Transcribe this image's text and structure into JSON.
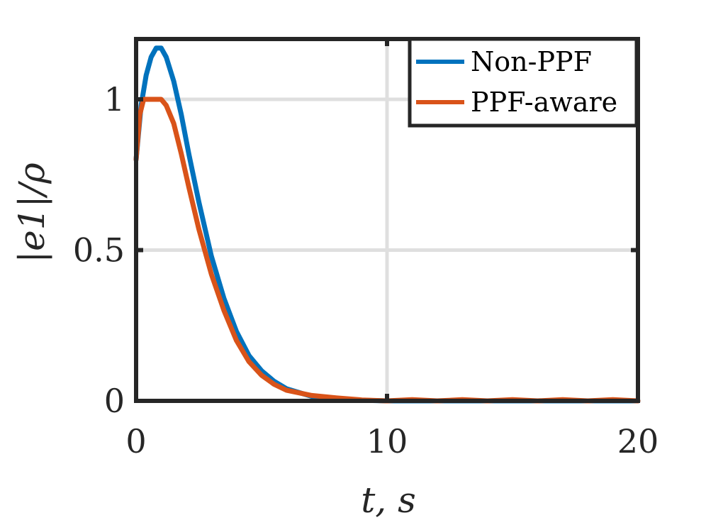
{
  "chart_data": {
    "type": "line",
    "title": "",
    "xlabel": "t, s",
    "ylabel": "|e1|/ρ",
    "xlim": [
      0,
      20
    ],
    "ylim": [
      0,
      1.2
    ],
    "x_ticks": [
      0,
      10,
      20
    ],
    "y_ticks": [
      0,
      0.5,
      1
    ],
    "x_tick_labels": [
      "0",
      "10",
      "20"
    ],
    "y_tick_labels": [
      "0",
      "0.5",
      "1"
    ],
    "grid": true,
    "legend_position": "top-right",
    "series": [
      {
        "name": "Non-PPF",
        "color": "#0072BD",
        "x": [
          0,
          0.2,
          0.4,
          0.6,
          0.8,
          1.0,
          1.2,
          1.5,
          1.8,
          2.1,
          2.5,
          3.0,
          3.5,
          4.0,
          4.5,
          5.0,
          5.5,
          6.0,
          7.0,
          8.0,
          9.0,
          10.0,
          12.0,
          14.0,
          16.0,
          18.0,
          20.0
        ],
        "y": [
          0.8,
          0.98,
          1.08,
          1.14,
          1.17,
          1.17,
          1.14,
          1.06,
          0.95,
          0.82,
          0.66,
          0.48,
          0.34,
          0.23,
          0.15,
          0.1,
          0.065,
          0.04,
          0.015,
          0.006,
          0.002,
          0.0,
          0.0,
          0.0,
          0.0,
          0.0,
          0.0
        ]
      },
      {
        "name": "PPF-aware",
        "color": "#D95319",
        "x": [
          0,
          0.15,
          0.3,
          0.5,
          0.8,
          1.0,
          1.2,
          1.5,
          1.8,
          2.1,
          2.5,
          3.0,
          3.5,
          4.0,
          4.5,
          5.0,
          5.5,
          6.0,
          7.0,
          8.0,
          9.0,
          10.0,
          11.0,
          12.0,
          13.0,
          14.0,
          15.0,
          16.0,
          17.0,
          18.0,
          19.0,
          20.0
        ],
        "y": [
          0.8,
          0.95,
          1.0,
          1.0,
          1.0,
          1.0,
          0.98,
          0.92,
          0.82,
          0.71,
          0.57,
          0.42,
          0.3,
          0.2,
          0.13,
          0.085,
          0.055,
          0.035,
          0.018,
          0.01,
          0.003,
          0.0,
          0.004,
          0.0,
          0.004,
          0.0,
          0.004,
          0.0,
          0.004,
          0.0,
          0.004,
          0.0
        ]
      }
    ]
  }
}
